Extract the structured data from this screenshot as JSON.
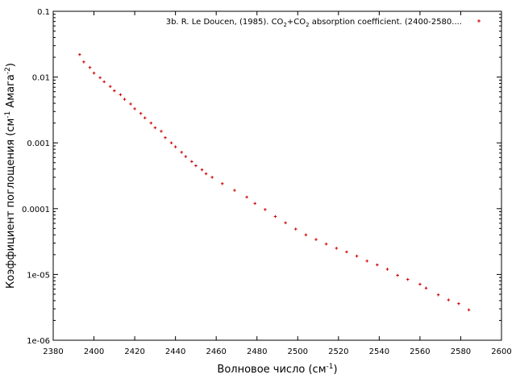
{
  "chart_data": {
    "type": "scatter",
    "title": "",
    "xlabel": {
      "main": "Волновое число (см",
      "sup": "-1",
      "tail": ")"
    },
    "ylabel": {
      "part1": "Коэффициент поглощения (см",
      "sup1": "-1",
      "part2": " Амага",
      "sup2": "-2",
      "tail": ")"
    },
    "xlim": [
      2380,
      2600
    ],
    "ylim": [
      1e-06,
      0.1
    ],
    "yscale": "log",
    "x_ticks": [
      "2380",
      "2400",
      "2420",
      "2440",
      "2460",
      "2480",
      "2500",
      "2520",
      "2540",
      "2560",
      "2580",
      "2600"
    ],
    "y_ticks": [
      "1e-06",
      "1e-05",
      "0.0001",
      "0.001",
      "0.01",
      "0.1"
    ],
    "legend": {
      "position": "top-right",
      "prefix": "3b. R. Le Doucen, (1985). CO",
      "sub1": "2",
      "mid": "+CO",
      "sub2": "2",
      "suffix": " absorption coefficient. (2400-2580...."
    },
    "series": [
      {
        "color": "#cc0000",
        "x": [
          2393,
          2395,
          2398,
          2400,
          2403,
          2405,
          2408,
          2410,
          2413,
          2415,
          2418,
          2420,
          2423,
          2425,
          2428,
          2430,
          2433,
          2435,
          2438,
          2440,
          2443,
          2445,
          2448,
          2450,
          2453,
          2455,
          2458,
          2463,
          2469,
          2475,
          2479,
          2484,
          2489,
          2494,
          2499,
          2504,
          2509,
          2514,
          2519,
          2524,
          2529,
          2534,
          2539,
          2544,
          2549,
          2554,
          2560,
          2563,
          2569,
          2574,
          2579,
          2584
        ],
        "y": [
          0.022,
          0.017,
          0.014,
          0.0115,
          0.0098,
          0.0085,
          0.0072,
          0.0062,
          0.0054,
          0.0046,
          0.0039,
          0.0033,
          0.0028,
          0.0024,
          0.002,
          0.0017,
          0.0015,
          0.0012,
          0.001,
          0.00087,
          0.00072,
          0.00062,
          0.00052,
          0.00045,
          0.00039,
          0.00034,
          0.0003,
          0.00024,
          0.00019,
          0.00015,
          0.00012,
          9.7e-05,
          7.6e-05,
          6.1e-05,
          4.9e-05,
          4e-05,
          3.4e-05,
          2.9e-05,
          2.5e-05,
          2.2e-05,
          1.9e-05,
          1.6e-05,
          1.4e-05,
          1.2e-05,
          9.7e-06,
          8.4e-06,
          7.1e-06,
          6.2e-06,
          4.9e-06,
          4.1e-06,
          3.6e-06,
          2.9e-06
        ]
      }
    ]
  }
}
